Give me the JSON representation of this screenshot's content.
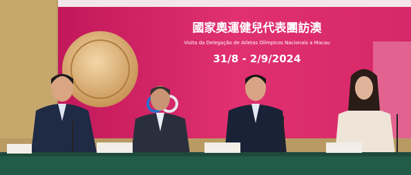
{
  "banner": {
    "title": "國家奧運健兒代表團訪澳",
    "subtitle": "Visita da Delegação de Atletas Olímpicos Nacionais a Macau",
    "dates": "31/8 - 2/9/2024"
  }
}
